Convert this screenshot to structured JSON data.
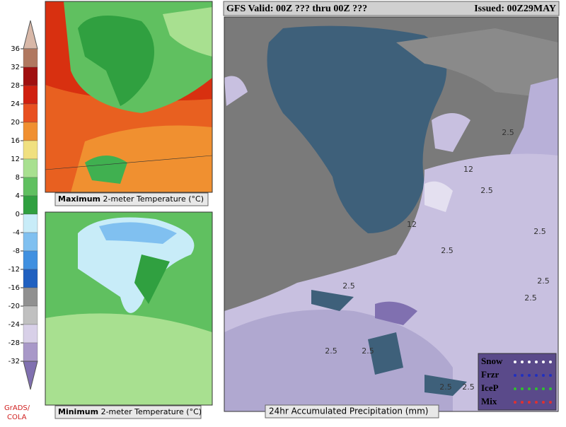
{
  "header": {
    "title": "GFS Valid: 00Z  ??? thru 00Z  ???",
    "issued": "Issued: 00Z29MAY"
  },
  "colorbar": {
    "ticks": [
      36,
      32,
      28,
      24,
      20,
      16,
      12,
      8,
      4,
      0,
      -4,
      -8,
      -12,
      -16,
      -20,
      -24,
      -28,
      -32
    ],
    "colors": [
      "#d8b8a8",
      "#b07860",
      "#a01010",
      "#d02010",
      "#e85020",
      "#f09030",
      "#f0e080",
      "#a8e090",
      "#60c060",
      "#30a040",
      "#c8ecf8",
      "#80c0f0",
      "#4090e0",
      "#2060c0",
      "#909090",
      "#c0c0c0",
      "#d8d0e8",
      "#a898c8",
      "#8070b0"
    ]
  },
  "credit": [
    "GrADS/",
    "COLA"
  ],
  "panels": [
    {
      "label_bold": "Maximum",
      "label": "2-meter Temperature (°C)"
    },
    {
      "label_bold": "Minimum",
      "label": "2-meter Temperature (°C)"
    }
  ],
  "precip_panel": {
    "label": "24hr Accumulated Precipitation (mm)",
    "contour_labels": [
      "2.5",
      "2.5",
      "2.5",
      "2.5",
      "2.5",
      "2.5",
      "2.5",
      "2.5",
      "2.5",
      "2.5",
      "2.5",
      "12",
      "12"
    ],
    "legend": [
      "Snow",
      "Frzr",
      "IceP",
      "Mix"
    ]
  }
}
